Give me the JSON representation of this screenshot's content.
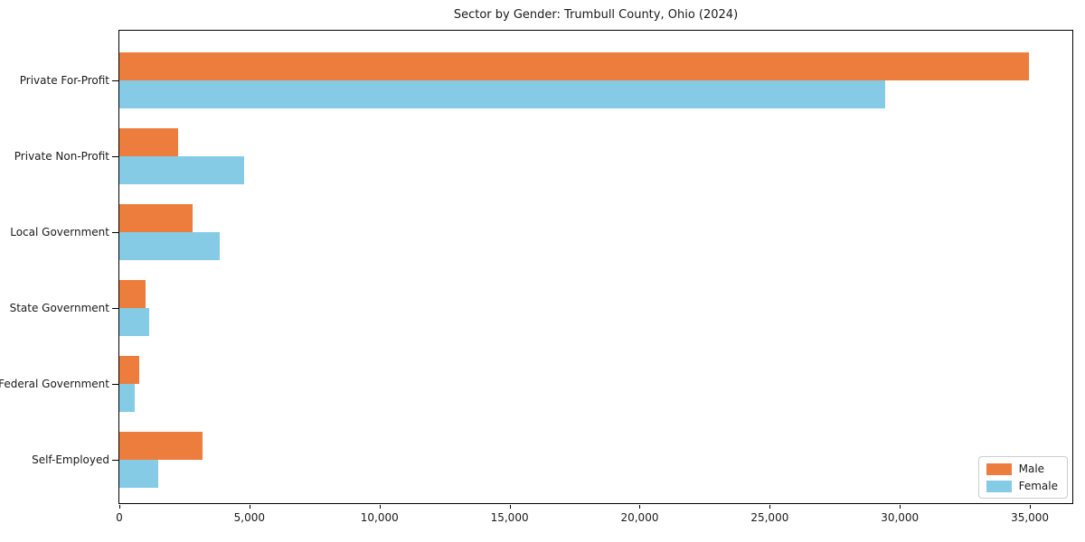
{
  "title": "Sector by Gender: Trumbull County, Ohio (2024)",
  "colors": {
    "male": "#ec7d3c",
    "female": "#85cbe5",
    "axis": "#000000",
    "legend_border": "#cccccc"
  },
  "legend": {
    "position": "lower right",
    "items": [
      {
        "label": "Male",
        "color": "#ec7d3c"
      },
      {
        "label": "Female",
        "color": "#85cbe5"
      }
    ]
  },
  "chart_data": {
    "type": "bar",
    "orientation": "horizontal",
    "title": "Sector by Gender: Trumbull County, Ohio (2024)",
    "categories": [
      "Private For-Profit",
      "Private Non-Profit",
      "Local Government",
      "State Government",
      "Federal Government",
      "Self-Employed"
    ],
    "series": [
      {
        "name": "Male",
        "color": "#ec7d3c",
        "values": [
          34950,
          2250,
          2800,
          1000,
          760,
          3200
        ]
      },
      {
        "name": "Female",
        "color": "#85cbe5",
        "values": [
          29450,
          4800,
          3850,
          1150,
          590,
          1500
        ]
      }
    ],
    "xlabel": "",
    "ylabel": "",
    "xlim": [
      0,
      36700
    ],
    "xticks": [
      0,
      5000,
      10000,
      15000,
      20000,
      25000,
      30000,
      35000
    ],
    "xtick_labels": [
      "0",
      "5,000",
      "10,000",
      "15,000",
      "20,000",
      "25,000",
      "30,000",
      "35,000"
    ],
    "grid": false,
    "legend_position": "lower right"
  }
}
